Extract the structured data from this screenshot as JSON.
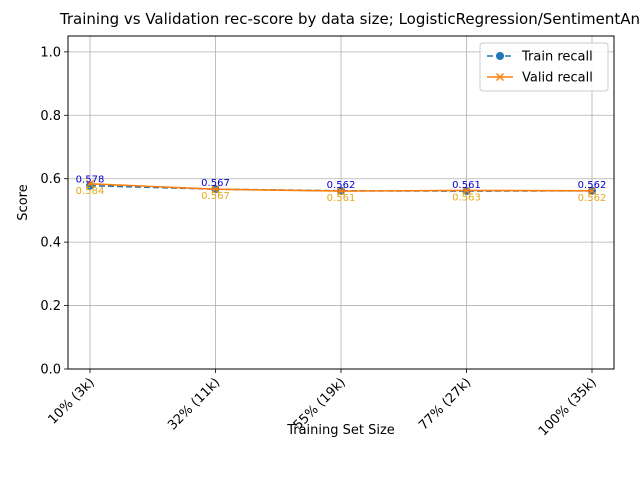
{
  "chart_data": {
    "type": "line",
    "title": "Training vs Validation rec-score by data size; LogisticRegression/SentimentAnalysis",
    "xlabel": "Training Set Size",
    "ylabel": "Score",
    "categories": [
      "10% (3k)",
      "32% (11k)",
      "55% (19k)",
      "77% (27k)",
      "100% (35k)"
    ],
    "ylim": [
      0,
      1.05
    ],
    "yticks": [
      "0.0",
      "0.2",
      "0.4",
      "0.6",
      "0.8",
      "1.0"
    ],
    "grid": true,
    "legend_position": "top-right",
    "series": [
      {
        "name": "Train recall",
        "values": [
          0.578,
          0.567,
          0.562,
          0.561,
          0.562
        ],
        "labels": [
          "0.578",
          "0.567",
          "0.562",
          "0.561",
          "0.562"
        ],
        "color": "#1f77b4",
        "label_color": "#0000cc",
        "line_style": "dashed",
        "marker": "circle"
      },
      {
        "name": "Valid recall",
        "values": [
          0.584,
          0.567,
          0.561,
          0.563,
          0.562
        ],
        "labels": [
          "0.584",
          "0.567",
          "0.561",
          "0.563",
          "0.562"
        ],
        "color": "#ff7f0e",
        "label_color": "#e6a817",
        "line_style": "solid",
        "marker": "x"
      }
    ]
  }
}
